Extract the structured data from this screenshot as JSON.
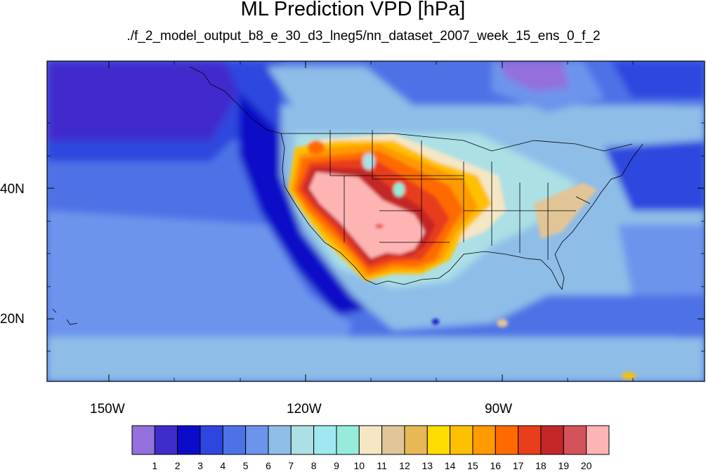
{
  "title": "ML Prediction VPD [hPa]",
  "subtitle": "./f_2_model_output_b8_e_30_d3_lneg5/nn_dataset_2007_week_15_ens_0_f_2",
  "axes": {
    "lat_labels": [
      "40N",
      "20N"
    ],
    "lon_labels": [
      "150W",
      "120W",
      "90W"
    ]
  },
  "colorbar": {
    "labels": [
      "1",
      "2",
      "3",
      "4",
      "5",
      "6",
      "7",
      "8",
      "9",
      "10",
      "11",
      "12",
      "13",
      "14",
      "15",
      "16",
      "17",
      "18",
      "19",
      "20"
    ],
    "colors": [
      "#9370db",
      "#3f2ccc",
      "#0c0cc8",
      "#2d46de",
      "#4d72e6",
      "#6d94ec",
      "#8ebde8",
      "#ace0e5",
      "#a0e8f0",
      "#96ecdb",
      "#f5e6c4",
      "#e2c597",
      "#e8b856",
      "#ffdc00",
      "#ffc000",
      "#ff9a00",
      "#ff6a00",
      "#e83e1c",
      "#c42628",
      "#d4525a",
      "#ffb4b4"
    ]
  }
}
